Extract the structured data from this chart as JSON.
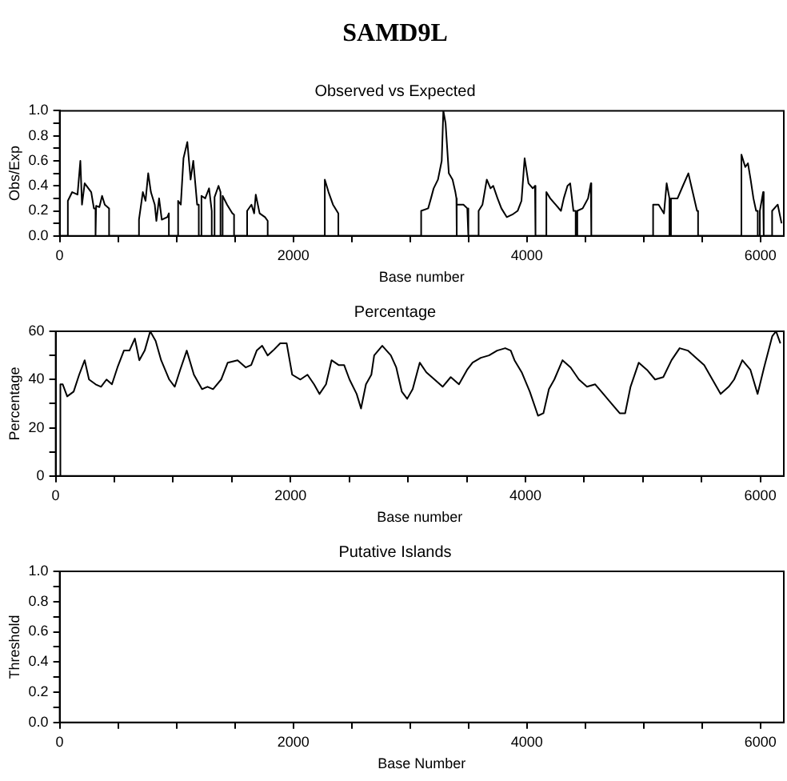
{
  "chart_data": [
    {
      "type": "line",
      "title": "SAMD9L",
      "subtitle": "Observed vs Expected",
      "xlabel": "Base number",
      "ylabel": "Obs/Exp",
      "xlim": [
        0,
        6200
      ],
      "ylim": [
        0,
        1
      ],
      "xticks": [
        0,
        {
          "value": 500,
          "label": null
        },
        {
          "value": 1000,
          "label": null
        },
        {
          "value": 1500,
          "label": null
        },
        2000,
        {
          "value": 2500,
          "label": null
        },
        {
          "value": 3000,
          "label": null
        },
        {
          "value": 3500,
          "label": null
        },
        4000,
        {
          "value": 4500,
          "label": null
        },
        {
          "value": 5000,
          "label": null
        },
        {
          "value": 5500,
          "label": null
        },
        6000
      ],
      "yticks": [
        {
          "value": 0,
          "label": "0.0"
        },
        {
          "value": 0.1,
          "label": null
        },
        {
          "value": 0.2,
          "label": "0.2"
        },
        {
          "value": 0.3,
          "label": null
        },
        {
          "value": 0.4,
          "label": "0.4"
        },
        {
          "value": 0.5,
          "label": null
        },
        {
          "value": 0.6,
          "label": "0.6"
        },
        {
          "value": 0.7,
          "label": null
        },
        {
          "value": 0.8,
          "label": "0.8"
        },
        {
          "value": 0.9,
          "label": null
        },
        {
          "value": 1,
          "label": "1.0"
        }
      ],
      "marker": "none",
      "line_style": "solid",
      "series": [
        {
          "color": "#000000",
          "x": [
            0,
            70,
            70,
            107,
            153,
            177,
            191,
            214,
            270,
            293,
            307,
            307,
            312,
            340,
            363,
            386,
            423,
            423,
            679,
            679,
            712,
            735,
            758,
            781,
            814,
            828,
            851,
            874,
            921,
            935,
            935,
            1014,
            1014,
            1037,
            1060,
            1093,
            1121,
            1144,
            1163,
            1177,
            1191,
            1191,
            1214,
            1214,
            1246,
            1279,
            1302,
            1302,
            1326,
            1326,
            1360,
            1377,
            1377,
            1395,
            1395,
            1433,
            1479,
            1493,
            1493,
            1605,
            1605,
            1642,
            1665,
            1679,
            1712,
            1758,
            1781,
            1781,
            2270,
            2270,
            2302,
            2340,
            2386,
            2386,
            3095,
            3095,
            3155,
            3179,
            3202,
            3239,
            3271,
            3285,
            3304,
            3332,
            3364,
            3388,
            3397,
            3397,
            3401,
            3401,
            3457,
            3490,
            3499,
            3499,
            3587,
            3587,
            3620,
            3657,
            3689,
            3712,
            3749,
            3782,
            3828,
            3875,
            3921,
            3954,
            3981,
            4014,
            4051,
            4070,
            4074,
            4074,
            4167,
            4167,
            4200,
            4246,
            4292,
            4316,
            4348,
            4371,
            4399,
            4418,
            4418,
            4432,
            4432,
            4478,
            4524,
            4548,
            4552,
            4552,
            5081,
            5081,
            5128,
            5174,
            5197,
            5221,
            5221,
            5234,
            5234,
            5290,
            5336,
            5383,
            5420,
            5457,
            5466,
            5466,
            5837,
            5837,
            5870,
            5893,
            5916,
            5940,
            5963,
            5977,
            5977,
            5995,
            5995,
            6023,
            6028,
            6028,
            6100,
            6100,
            6148,
            6181
          ],
          "values": [
            0,
            0,
            0.28,
            0.35,
            0.33,
            0.6,
            0.25,
            0.42,
            0.35,
            0.22,
            0.22,
            0,
            0.24,
            0.23,
            0.32,
            0.25,
            0.22,
            0,
            0,
            0.13,
            0.35,
            0.28,
            0.5,
            0.35,
            0.25,
            0.12,
            0.3,
            0.13,
            0.15,
            0.18,
            0,
            0,
            0.28,
            0.25,
            0.62,
            0.75,
            0.45,
            0.6,
            0.4,
            0.25,
            0.25,
            0,
            0,
            0.32,
            0.3,
            0.38,
            0.2,
            0,
            0,
            0.31,
            0.4,
            0.35,
            0,
            0,
            0.32,
            0.25,
            0.18,
            0.17,
            0,
            0,
            0.2,
            0.25,
            0.18,
            0.33,
            0.18,
            0.15,
            0.12,
            0,
            0,
            0.45,
            0.35,
            0.25,
            0.18,
            0,
            0,
            0.2,
            0.22,
            0.3,
            0.38,
            0.45,
            0.6,
            1.0,
            0.9,
            0.5,
            0.45,
            0.35,
            0.3,
            0,
            0,
            0.25,
            0.25,
            0.22,
            0.22,
            0,
            0,
            0.2,
            0.25,
            0.45,
            0.38,
            0.4,
            0.3,
            0.22,
            0.15,
            0.17,
            0.2,
            0.28,
            0.62,
            0.42,
            0.38,
            0.4,
            0.4,
            0,
            0,
            0.35,
            0.3,
            0.25,
            0.2,
            0.3,
            0.4,
            0.42,
            0.2,
            0.2,
            0,
            0,
            0.2,
            0.22,
            0.3,
            0.42,
            0.42,
            0,
            0,
            0.25,
            0.25,
            0.18,
            0.42,
            0.3,
            0,
            0,
            0.3,
            0.3,
            0.4,
            0.5,
            0.35,
            0.2,
            0.2,
            0,
            0,
            0.65,
            0.55,
            0.58,
            0.45,
            0.3,
            0.2,
            0.2,
            0,
            0,
            0.2,
            0.35,
            0.35,
            0,
            0,
            0.2,
            0.25,
            0.1
          ]
        }
      ]
    },
    {
      "type": "line",
      "title": "Percentage",
      "xlabel": "Base number",
      "ylabel": "Percentage",
      "xlim": [
        0,
        6200
      ],
      "ylim": [
        0,
        60
      ],
      "xticks": [
        0,
        {
          "value": 500,
          "label": null
        },
        {
          "value": 1000,
          "label": null
        },
        {
          "value": 1500,
          "label": null
        },
        2000,
        {
          "value": 2500,
          "label": null
        },
        {
          "value": 3000,
          "label": null
        },
        {
          "value": 3500,
          "label": null
        },
        4000,
        {
          "value": 4500,
          "label": null
        },
        {
          "value": 5000,
          "label": null
        },
        {
          "value": 5500,
          "label": null
        },
        6000
      ],
      "yticks": [
        0,
        {
          "value": 10,
          "label": null
        },
        20,
        {
          "value": 30,
          "label": null
        },
        40,
        {
          "value": 50,
          "label": null
        },
        60
      ],
      "marker": "none",
      "line_style": "solid",
      "series": [
        {
          "color": "#000000",
          "x": [
            37,
            40,
            60,
            98,
            153,
            200,
            247,
            284,
            340,
            386,
            433,
            479,
            526,
            581,
            628,
            674,
            712,
            758,
            805,
            851,
            898,
            967,
            1014,
            1060,
            1116,
            1177,
            1246,
            1293,
            1340,
            1409,
            1465,
            1549,
            1619,
            1665,
            1712,
            1758,
            1805,
            1851,
            1912,
            1967,
            2014,
            2084,
            2144,
            2200,
            2246,
            2302,
            2349,
            2409,
            2456,
            2502,
            2563,
            2600,
            2642,
            2688,
            2712,
            2781,
            2854,
            2900,
            2947,
            2993,
            3040,
            3100,
            3156,
            3226,
            3295,
            3364,
            3434,
            3503,
            3550,
            3620,
            3690,
            3759,
            3828,
            3875,
            3907,
            3968,
            4037,
            4107,
            4153,
            4200,
            4246,
            4316,
            4385,
            4455,
            4524,
            4594,
            4664,
            4733,
            4803,
            4849,
            4895,
            4965,
            5035,
            5104,
            5174,
            5244,
            5313,
            5383,
            5453,
            5522,
            5592,
            5662,
            5731,
            5777,
            5847,
            5916,
            5977,
            6032,
            6102,
            6134,
            6171
          ],
          "values": [
            0,
            38,
            38,
            33,
            35,
            42,
            48,
            40,
            38,
            37,
            40,
            38,
            45,
            52,
            52,
            57,
            48,
            52,
            60,
            56,
            48,
            40,
            37,
            44,
            52,
            42,
            36,
            37,
            36,
            40,
            47,
            48,
            45,
            46,
            52,
            54,
            50,
            52,
            55,
            55,
            42,
            40,
            42,
            38,
            34,
            38,
            48,
            46,
            46,
            40,
            34,
            28,
            38,
            42,
            50,
            54,
            50,
            45,
            35,
            32,
            36,
            47,
            43,
            40,
            37,
            41,
            38,
            44,
            47,
            49,
            50,
            52,
            53,
            52,
            48,
            43,
            35,
            25,
            26,
            36,
            40,
            48,
            45,
            40,
            37,
            38,
            34,
            30,
            26,
            26,
            37,
            47,
            44,
            40,
            41,
            48,
            53,
            52,
            49,
            46,
            40,
            34,
            37,
            40,
            48,
            44,
            34,
            45,
            58,
            60,
            55
          ]
        }
      ]
    },
    {
      "type": "line",
      "title": "Putative Islands",
      "xlabel": "Base Number",
      "ylabel": "Threshold",
      "xlim": [
        0,
        6200
      ],
      "ylim": [
        0,
        1
      ],
      "xticks": [
        0,
        {
          "value": 500,
          "label": null
        },
        {
          "value": 1000,
          "label": null
        },
        {
          "value": 1500,
          "label": null
        },
        2000,
        {
          "value": 2500,
          "label": null
        },
        {
          "value": 3000,
          "label": null
        },
        {
          "value": 3500,
          "label": null
        },
        4000,
        {
          "value": 4500,
          "label": null
        },
        {
          "value": 5000,
          "label": null
        },
        {
          "value": 5500,
          "label": null
        },
        6000
      ],
      "yticks": [
        {
          "value": 0,
          "label": "0.0"
        },
        {
          "value": 0.1,
          "label": null
        },
        {
          "value": 0.2,
          "label": "0.2"
        },
        {
          "value": 0.3,
          "label": null
        },
        {
          "value": 0.4,
          "label": "0.4"
        },
        {
          "value": 0.5,
          "label": null
        },
        {
          "value": 0.6,
          "label": "0.6"
        },
        {
          "value": 0.7,
          "label": null
        },
        {
          "value": 0.8,
          "label": "0.8"
        },
        {
          "value": 0.9,
          "label": null
        },
        {
          "value": 1,
          "label": "1.0"
        }
      ]
    }
  ]
}
